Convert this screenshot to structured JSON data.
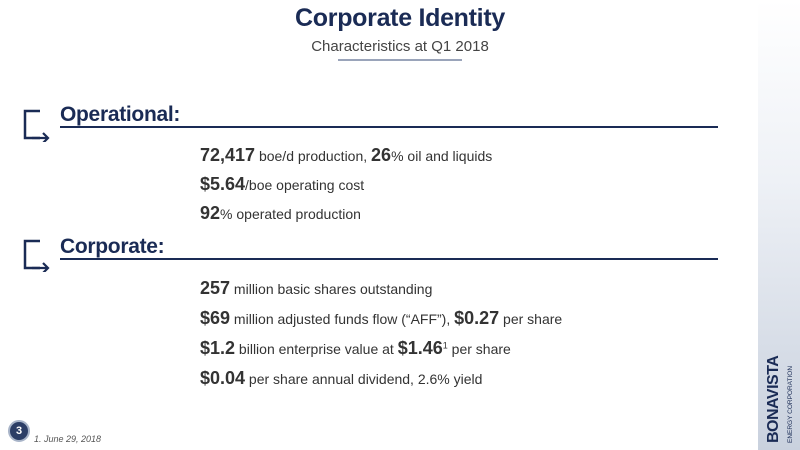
{
  "slide": {
    "title": "Corporate Identity",
    "subtitle": "Characteristics at Q1 2018",
    "page_number": "3",
    "footnote": "1. June 29, 2018"
  },
  "sections": [
    {
      "heading": "Operational:",
      "bullets": [
        {
          "value": "72,417",
          "t1": " boe/d production, ",
          "value2": "26",
          "t2": "% oil and liquids"
        },
        {
          "value": "$5.64",
          "t1": "/boe operating cost"
        },
        {
          "value": "92",
          "t1": "% operated production"
        }
      ]
    },
    {
      "heading": "Corporate:",
      "bullets": [
        {
          "value": "257",
          "t1": " million basic shares outstanding"
        },
        {
          "value": "$69",
          "t1": " million adjusted funds flow (“AFF”), ",
          "value2": "$0.27",
          "t2": " per share"
        },
        {
          "value": "$1.2",
          "t1": " billion enterprise value at ",
          "value2": "$1.46",
          "sup": "1",
          "t2": " per share"
        },
        {
          "value": "$0.04",
          "t1": " per share annual dividend, 2.6% yield"
        }
      ]
    }
  ],
  "logo": {
    "name": "BONAVISTA",
    "tagline": "ENERGY CORPORATION"
  },
  "colors": {
    "navy": "#1a2b55",
    "text": "#333333"
  }
}
